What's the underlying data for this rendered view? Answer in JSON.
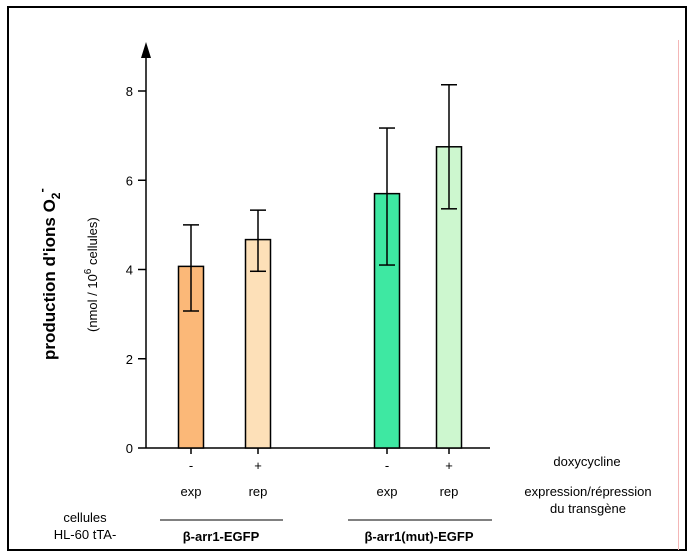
{
  "chart_data": {
    "type": "bar",
    "ylabel_main": "production d'ions O",
    "ylabel_sub": "2",
    "ylabel_sup": "-",
    "ylabel_unit_pre": "(nmol / 10",
    "ylabel_unit_sup": "6",
    "ylabel_unit_post": " cellules)",
    "ylim": [
      0,
      8.5
    ],
    "yticks": [
      0,
      2,
      4,
      6,
      8
    ],
    "bars": [
      {
        "sign": "-",
        "label": "exp",
        "value": 4.07,
        "error_low": 3.07,
        "error_high": 5.0,
        "fill": "#fbb878",
        "group": 0
      },
      {
        "sign": "+",
        "label": "rep",
        "value": 4.67,
        "error_low": 3.96,
        "error_high": 5.33,
        "fill": "#fde0b8",
        "group": 0
      },
      {
        "sign": "-",
        "label": "exp",
        "value": 5.7,
        "error_low": 4.1,
        "error_high": 7.17,
        "fill": "#3ee8a2",
        "group": 1
      },
      {
        "sign": "+",
        "label": "rep",
        "value": 6.75,
        "error_low": 5.36,
        "error_high": 8.14,
        "fill": "#cdf7cf",
        "group": 1
      }
    ],
    "groups": [
      "β-arr1-EGFP",
      "β-arr1(mut)-EGFP"
    ],
    "row_label_cells_1": "cellules",
    "row_label_cells_2": "HL-60 tTA-",
    "right_label_1": "doxycycline",
    "right_label_2": "expression/répression",
    "right_label_3": "du transgène"
  }
}
